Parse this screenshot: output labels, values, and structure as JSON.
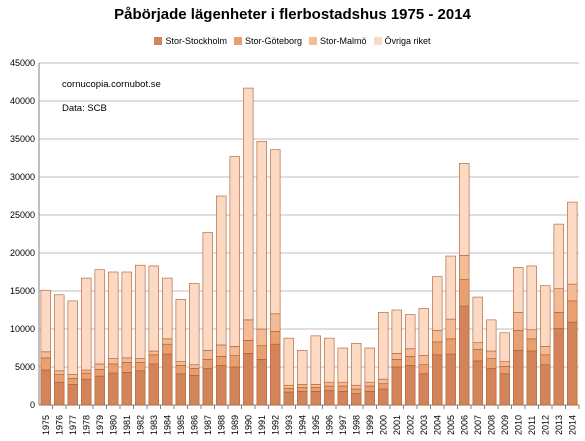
{
  "chart_data": {
    "type": "bar",
    "stacked": true,
    "title": "Påbörjade lägenheter i flerbostadshus 1975 - 2014",
    "annotations": [
      "cornucopia.cornubot.se",
      "Data: SCB"
    ],
    "categories": [
      "1975",
      "1976",
      "1977",
      "1978",
      "1979",
      "1980",
      "1981",
      "1982",
      "1983",
      "1984",
      "1985",
      "1986",
      "1987",
      "1988",
      "1989",
      "1990",
      "1991",
      "1992",
      "1993",
      "1994",
      "1995",
      "1996",
      "1997",
      "1998",
      "1999",
      "2000",
      "2001",
      "2002",
      "2003",
      "2004",
      "2005",
      "2006",
      "2007",
      "2008",
      "2009",
      "2010",
      "2011",
      "2012",
      "2013",
      "2014"
    ],
    "series": [
      {
        "name": "Stor-Stockholm",
        "color": "#d4845a",
        "values": [
          4600,
          3000,
          2700,
          3400,
          3800,
          4200,
          4300,
          4500,
          5400,
          6700,
          4100,
          3900,
          4800,
          5200,
          5000,
          6800,
          6000,
          8000,
          1700,
          1800,
          1800,
          1900,
          1800,
          1500,
          1800,
          2100,
          5000,
          5200,
          4100,
          6600,
          6700,
          13000,
          5800,
          4800,
          4100,
          7200,
          7100,
          5300,
          10100,
          10900
        ]
      },
      {
        "name": "Stor-Göteborg",
        "color": "#e8a070",
        "values": [
          1600,
          1000,
          800,
          800,
          900,
          1200,
          1300,
          1100,
          1200,
          1300,
          1100,
          900,
          1200,
          1200,
          1500,
          1700,
          1800,
          1700,
          500,
          500,
          500,
          600,
          700,
          600,
          700,
          700,
          1000,
          1200,
          1200,
          1700,
          2000,
          3500,
          1500,
          1300,
          1000,
          2600,
          1600,
          1300,
          2100,
          2800
        ]
      },
      {
        "name": "Stor-Malmö",
        "color": "#f3bc96",
        "values": [
          800,
          500,
          500,
          400,
          700,
          700,
          600,
          500,
          500,
          700,
          500,
          500,
          1200,
          1500,
          1200,
          2700,
          2200,
          2300,
          400,
          400,
          400,
          500,
          500,
          500,
          500,
          600,
          800,
          1000,
          1200,
          1500,
          2600,
          3200,
          900,
          1000,
          600,
          2400,
          1200,
          1100,
          3100,
          2200
        ]
      },
      {
        "name": "Övriga riket",
        "color": "#fbd9c2",
        "values": [
          8100,
          10000,
          9700,
          12100,
          12400,
          11400,
          11300,
          12300,
          11200,
          8000,
          8200,
          10700,
          15500,
          19600,
          25000,
          30500,
          24700,
          21600,
          6200,
          4500,
          6400,
          5800,
          4500,
          5500,
          4500,
          8800,
          5700,
          4500,
          6200,
          7100,
          8300,
          12100,
          6000,
          4100,
          3800,
          5900,
          8400,
          8000,
          8500,
          10800
        ]
      }
    ],
    "ylim": [
      0,
      45000
    ],
    "yticks": [
      0,
      5000,
      10000,
      15000,
      20000,
      25000,
      30000,
      35000,
      40000,
      45000
    ],
    "grid": true,
    "legend_position": "top"
  },
  "colors": {
    "bar_stroke": "#b05a2e",
    "grid": "#bfbfbf"
  }
}
